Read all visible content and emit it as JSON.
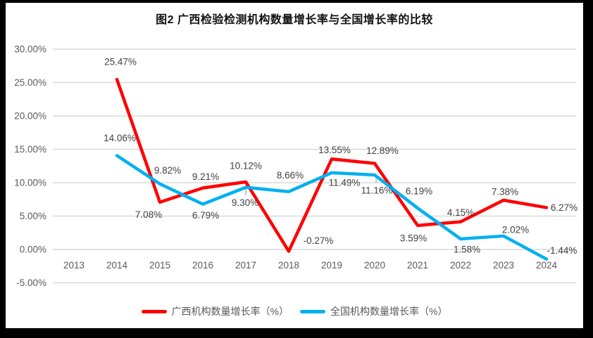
{
  "title": "图2 广西检验检测机构数量增长率与全国增长率的比较",
  "chart_data": {
    "type": "line",
    "title": "图2 广西检验检测机构数量增长率与全国增长率的比较",
    "categories": [
      "2013",
      "2014",
      "2015",
      "2016",
      "2017",
      "2018",
      "2019",
      "2020",
      "2021",
      "2022",
      "2023",
      "2024"
    ],
    "series": [
      {
        "name": "广西机构数量增长率（%）",
        "color": "#FF0000",
        "values": [
          null,
          25.47,
          7.08,
          9.21,
          10.12,
          -0.27,
          13.55,
          12.89,
          3.59,
          4.15,
          7.38,
          6.27
        ]
      },
      {
        "name": "全国机构数量增长率（%）",
        "color": "#00B0F0",
        "values": [
          null,
          14.06,
          9.82,
          6.79,
          9.3,
          8.66,
          11.49,
          11.16,
          6.19,
          1.58,
          2.02,
          -1.44
        ]
      }
    ],
    "ylim": [
      -5,
      30
    ],
    "ytick_step": 5,
    "ytick_labels": [
      "30.00%",
      "25.00%",
      "20.00%",
      "15.00%",
      "10.00%",
      "5.00%",
      "0.00%",
      "-5.00%"
    ],
    "xlabel": "",
    "ylabel": "",
    "grid": true,
    "data_labels": true,
    "legend_position": "bottom",
    "colors": {
      "gridline": "#D9D9D9",
      "axis_text": "#595959",
      "data_label_text": "#404040",
      "leader_line": "#A6A6A6",
      "background": "#FFFFFF",
      "frame": "#000000"
    }
  }
}
